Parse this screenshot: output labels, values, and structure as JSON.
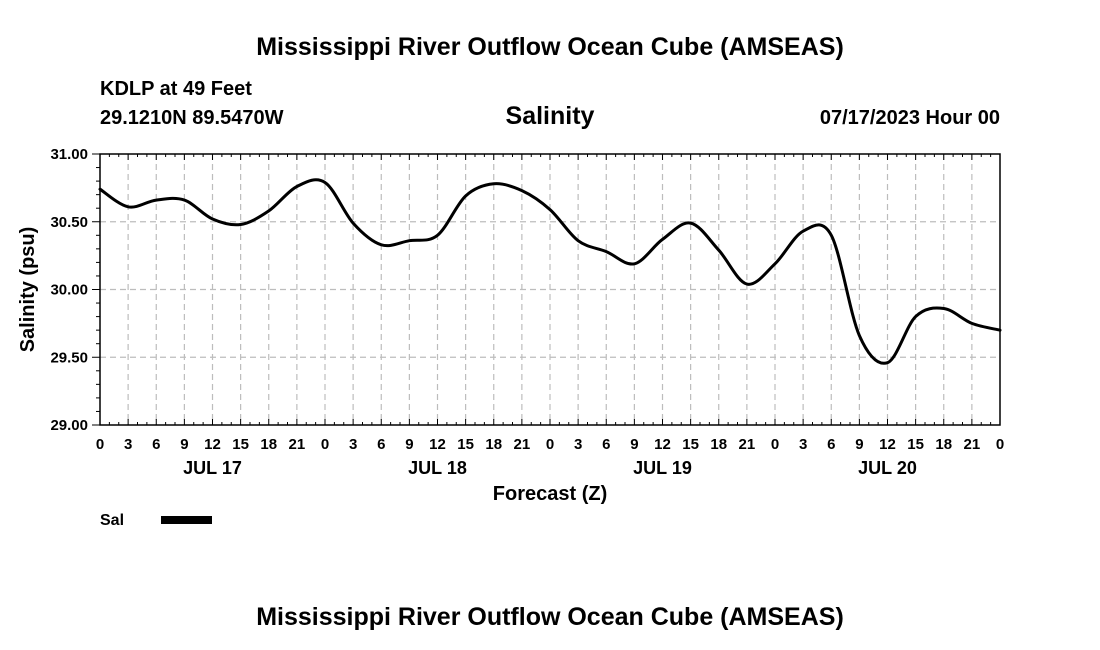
{
  "header": {
    "title": "Mississippi River Outflow Ocean Cube (AMSEAS)",
    "station": "KDLP at 49 Feet",
    "coords": "29.1210N  89.5470W",
    "datetime": "07/17/2023 Hour 00",
    "footer_title": "Mississippi River Outflow Ocean Cube (AMSEAS)"
  },
  "legend": {
    "label": "Sal"
  },
  "chart_data": {
    "type": "line",
    "title": "Salinity",
    "xlabel": "Forecast (Z)",
    "ylabel": "Salinity (psu)",
    "ylim": [
      29.0,
      31.0
    ],
    "xlim": [
      0,
      96
    ],
    "yticks": [
      "29.00",
      "29.50",
      "30.00",
      "30.50",
      "31.00"
    ],
    "ytick_values": [
      29.0,
      29.5,
      30.0,
      30.5,
      31.0
    ],
    "xtick_labels": [
      "0",
      "3",
      "6",
      "9",
      "12",
      "15",
      "18",
      "21",
      "0",
      "3",
      "6",
      "9",
      "12",
      "15",
      "18",
      "21",
      "0",
      "3",
      "6",
      "9",
      "12",
      "15",
      "18",
      "21",
      "0",
      "3",
      "6",
      "9",
      "12",
      "15",
      "18",
      "21",
      "0"
    ],
    "xtick_hours": [
      0,
      3,
      6,
      9,
      12,
      15,
      18,
      21,
      24,
      27,
      30,
      33,
      36,
      39,
      42,
      45,
      48,
      51,
      54,
      57,
      60,
      63,
      66,
      69,
      72,
      75,
      78,
      81,
      84,
      87,
      90,
      93,
      96
    ],
    "day_labels": [
      "JUL 17",
      "JUL 18",
      "JUL 19",
      "JUL 20"
    ],
    "day_label_hours": [
      12,
      36,
      60,
      84
    ],
    "grid": true,
    "series": [
      {
        "name": "Sal",
        "x": [
          0,
          3,
          6,
          9,
          12,
          15,
          18,
          21,
          24,
          27,
          30,
          33,
          36,
          39,
          42,
          45,
          48,
          51,
          54,
          57,
          60,
          63,
          66,
          69,
          72,
          75,
          78,
          81,
          84,
          87,
          90,
          93,
          96
        ],
        "values": [
          30.74,
          30.61,
          30.66,
          30.66,
          30.52,
          30.48,
          30.58,
          30.76,
          30.79,
          30.49,
          30.33,
          30.36,
          30.4,
          30.69,
          30.78,
          30.73,
          30.59,
          30.36,
          30.28,
          30.19,
          30.37,
          30.49,
          30.29,
          30.04,
          30.19,
          30.43,
          30.4,
          29.66,
          29.46,
          29.8,
          29.86,
          29.75,
          29.7
        ]
      }
    ]
  }
}
